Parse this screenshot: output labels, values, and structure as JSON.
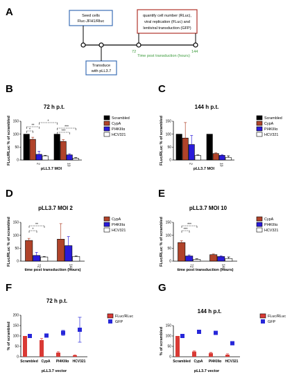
{
  "panel_labels": [
    "A",
    "B",
    "C",
    "D",
    "E",
    "F",
    "G"
  ],
  "schematic": {
    "box_seed": [
      "Seed cells",
      "Fluc-JFH1/Rluc"
    ],
    "box_transduce": [
      "Transduce",
      "with pLL3.7"
    ],
    "box_quantify": [
      "quantify cell number (RLuc),",
      "viral replication (FLuc) and",
      "lentiviral transduction (GFP)"
    ],
    "tick_72": "72",
    "tick_144": "144",
    "axis_label": "Time post transduction (hours)"
  },
  "colors": {
    "scrambled": "#000000",
    "cypa": "#b0432a",
    "pi4k": "#2a1bd9",
    "hcv321": "#ffffff",
    "fluc": "#d93a35",
    "gfp": "#2727d9",
    "box_blue": "#3b6fb6",
    "box_red": "#b0332a",
    "timeline_text": "#3a9a3a"
  },
  "chart_data": [
    {
      "id": "B",
      "type": "bar",
      "title": "72 h p.t.",
      "xlabel": "pLL3.7 MOI",
      "ylabel": "FLuc/RLuc % of scrambled",
      "categories": [
        "2",
        "10"
      ],
      "ylim": [
        0,
        150
      ],
      "yticks": [
        0,
        50,
        100,
        150
      ],
      "legend_position": "right",
      "series": [
        {
          "name": "Scrambled",
          "values": [
            100,
            100
          ],
          "errors": [
            0,
            0
          ]
        },
        {
          "name": "CypA",
          "values": [
            80,
            72
          ],
          "errors": [
            8,
            7
          ]
        },
        {
          "name": "PI4KIIIα",
          "values": [
            22,
            20
          ],
          "errors": [
            12,
            4
          ]
        },
        {
          "name": "HCV321",
          "values": [
            16,
            7
          ],
          "errors": [
            2,
            2
          ]
        }
      ],
      "significance": [
        "*",
        "**",
        "*",
        "***",
        "***"
      ]
    },
    {
      "id": "C",
      "type": "bar",
      "title": "144 h p.t.",
      "xlabel": "pLL3.7 MOI",
      "ylabel": "FLuc/RLuc % of scrambled",
      "categories": [
        "2",
        "10"
      ],
      "ylim": [
        0,
        150
      ],
      "yticks": [
        0,
        50,
        100,
        150
      ],
      "legend_position": "right",
      "series": [
        {
          "name": "Scrambled",
          "values": [
            100,
            100
          ],
          "errors": [
            0,
            0
          ]
        },
        {
          "name": "CypA",
          "values": [
            85,
            25
          ],
          "errors": [
            60,
            3
          ]
        },
        {
          "name": "PI4KIIIα",
          "values": [
            60,
            18
          ],
          "errors": [
            35,
            3
          ]
        },
        {
          "name": "HCV321",
          "values": [
            18,
            10
          ],
          "errors": [
            2,
            6
          ]
        }
      ]
    },
    {
      "id": "D",
      "type": "bar",
      "title": "pLL3.7 MOI 2",
      "xlabel": "time post transduction (hours)",
      "ylabel": "FLuc/RLuc % of scrambled",
      "categories": [
        "72",
        "144"
      ],
      "ylim": [
        0,
        150
      ],
      "yticks": [
        0,
        50,
        100,
        150
      ],
      "legend_position": "right",
      "series": [
        {
          "name": "CypA",
          "values": [
            80,
            85
          ],
          "errors": [
            8,
            60
          ]
        },
        {
          "name": "PI4KIIIα",
          "values": [
            22,
            60
          ],
          "errors": [
            12,
            35
          ]
        },
        {
          "name": "HCV321",
          "values": [
            16,
            18
          ],
          "errors": [
            2,
            2
          ]
        }
      ],
      "significance": [
        "*",
        "**"
      ]
    },
    {
      "id": "E",
      "type": "bar",
      "title": "pLL3.7 MOI 10",
      "xlabel": "time post transduction (hours)",
      "ylabel": "FLuc/RLuc % of scrambled",
      "categories": [
        "72",
        "144"
      ],
      "ylim": [
        0,
        150
      ],
      "yticks": [
        0,
        50,
        100,
        150
      ],
      "legend_position": "right",
      "series": [
        {
          "name": "CypA",
          "values": [
            72,
            25
          ],
          "errors": [
            7,
            3
          ]
        },
        {
          "name": "PI4KIIIα",
          "values": [
            20,
            18
          ],
          "errors": [
            4,
            3
          ]
        },
        {
          "name": "HCV321",
          "values": [
            7,
            10
          ],
          "errors": [
            2,
            6
          ]
        }
      ],
      "significance": [
        "***",
        "***"
      ]
    },
    {
      "id": "F",
      "type": "bar",
      "title": "72 h p.t.",
      "xlabel": "pLL3.7 vector",
      "ylabel": "% of scrambled",
      "categories": [
        "Scrambled",
        "CypA",
        "PI4KIIIα",
        "HCV321"
      ],
      "ylim": [
        0,
        200
      ],
      "yticks": [
        0,
        50,
        100,
        150,
        200
      ],
      "legend_position": "right",
      "series": [
        {
          "name": "FLuc/RLuc",
          "kind": "bar",
          "values": [
            100,
            80,
            20,
            7
          ],
          "errors": [
            0,
            8,
            4,
            2
          ]
        },
        {
          "name": "GFP",
          "kind": "point",
          "values": [
            100,
            102,
            115,
            130
          ],
          "errors": [
            0,
            4,
            12,
            60
          ]
        }
      ]
    },
    {
      "id": "G",
      "type": "bar",
      "title": "144 h p.t.",
      "xlabel": "pLL3.7 vector",
      "ylabel": "% of scrambled",
      "categories": [
        "Scrambled",
        "CypA",
        "PI4KIIIα",
        "HCV321"
      ],
      "ylim": [
        0,
        150
      ],
      "yticks": [
        0,
        50,
        100,
        150
      ],
      "legend_position": "right",
      "series": [
        {
          "name": "FLuc/RLuc",
          "kind": "bar",
          "values": [
            100,
            25,
            18,
            10
          ],
          "errors": [
            0,
            3,
            3,
            4
          ]
        },
        {
          "name": "GFP",
          "kind": "point",
          "values": [
            100,
            120,
            115,
            65
          ],
          "errors": [
            0,
            5,
            8,
            3
          ]
        }
      ]
    }
  ]
}
